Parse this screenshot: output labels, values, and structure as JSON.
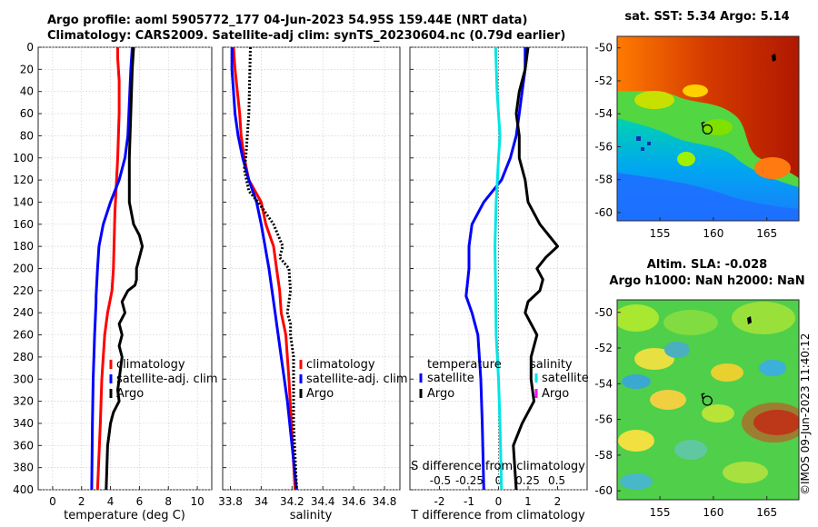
{
  "header": {
    "line1": "Argo profile: aoml 5905772_177 04-Jun-2023 54.95S 159.44E (NRT data)",
    "line2": "Climatology: CARS2009. Satellite-adj clim: synTS_20230604.nc (0.79d earlier)"
  },
  "copyright": "©IMOS 09-Jun-2023 11:40:12",
  "colors": {
    "climatology": "#ff0000",
    "satellite": "#0000ff",
    "argo": "#000000",
    "satellite_salinity": "#00e5e5",
    "argo_salinity": "#ff00ff",
    "zero_line": "#666666"
  },
  "chart_data": [
    {
      "type": "line",
      "panel": "temperature",
      "xlabel": "temperature (deg C)",
      "ylabel": "",
      "xlim": [
        -1,
        11
      ],
      "ylim": [
        400,
        0
      ],
      "x_ticks": [
        0,
        2,
        4,
        6,
        8,
        10
      ],
      "x_tick_labels": [
        "0",
        "2",
        "4",
        "6",
        "8",
        "10"
      ],
      "y_ticks": [
        0,
        20,
        40,
        60,
        80,
        100,
        120,
        140,
        160,
        180,
        200,
        220,
        240,
        260,
        280,
        300,
        320,
        340,
        360,
        380,
        400
      ],
      "y_tick_labels": [
        "0",
        "20",
        "40",
        "60",
        "80",
        "100",
        "120",
        "140",
        "160",
        "180",
        "200",
        "220",
        "240",
        "260",
        "280",
        "300",
        "320",
        "340",
        "360",
        "380",
        "400"
      ],
      "grid": true,
      "legend": [
        "climatology",
        "satellite-adj. clim",
        "Argo"
      ],
      "series": [
        {
          "name": "climatology",
          "color": "#ff0000",
          "width": 3,
          "dashed": false,
          "depth": [
            0,
            10,
            30,
            60,
            100,
            150,
            200,
            220,
            240,
            260,
            280,
            300,
            340,
            400
          ],
          "values": [
            4.5,
            4.5,
            4.6,
            4.6,
            4.5,
            4.3,
            4.2,
            4.1,
            3.8,
            3.6,
            3.5,
            3.4,
            3.3,
            3.1
          ]
        },
        {
          "name": "satellite-adj. clim",
          "color": "#0000ff",
          "width": 3,
          "dashed": false,
          "depth": [
            0,
            20,
            50,
            80,
            100,
            120,
            140,
            160,
            180,
            200,
            225,
            230,
            260,
            300,
            340,
            400
          ],
          "values": [
            5.5,
            5.4,
            5.3,
            5.2,
            5.0,
            4.6,
            4.0,
            3.5,
            3.2,
            3.1,
            3.0,
            3.0,
            2.9,
            2.8,
            2.75,
            2.7
          ]
        },
        {
          "name": "Argo",
          "color": "#000000",
          "width": 3,
          "dashed": false,
          "depth": [
            0,
            20,
            60,
            100,
            120,
            140,
            160,
            170,
            180,
            190,
            200,
            210,
            215,
            220,
            230,
            240,
            250,
            260,
            270,
            280,
            300,
            310,
            320,
            330,
            340,
            360,
            400
          ],
          "values": [
            5.6,
            5.5,
            5.4,
            5.3,
            5.3,
            5.3,
            5.6,
            6.0,
            6.2,
            6.0,
            5.8,
            5.8,
            5.7,
            5.2,
            4.8,
            5.0,
            4.6,
            4.8,
            4.6,
            4.8,
            4.6,
            4.5,
            4.6,
            4.2,
            4.0,
            3.8,
            3.7
          ]
        }
      ]
    },
    {
      "type": "line",
      "panel": "salinity",
      "xlabel": "salinity",
      "ylabel": "",
      "xlim": [
        33.75,
        34.9
      ],
      "ylim": [
        400,
        0
      ],
      "x_ticks": [
        33.8,
        34,
        34.2,
        34.4,
        34.6,
        34.8
      ],
      "x_tick_labels": [
        "33.8",
        "34",
        "34.2",
        "34.4",
        "34.6",
        "34.8"
      ],
      "grid": true,
      "legend": [
        "climatology",
        "satellite-adj. clim",
        "Argo"
      ],
      "series": [
        {
          "name": "climatology",
          "color": "#ff0000",
          "width": 3,
          "dashed": false,
          "depth": [
            0,
            20,
            60,
            80,
            100,
            120,
            140,
            160,
            180,
            200,
            220,
            240,
            260,
            300,
            400
          ],
          "values": [
            33.82,
            33.83,
            33.86,
            33.87,
            33.89,
            33.92,
            34.0,
            34.03,
            34.08,
            34.1,
            34.12,
            34.13,
            34.16,
            34.18,
            34.22
          ]
        },
        {
          "name": "satellite-adj. clim",
          "color": "#0000ff",
          "width": 3,
          "dashed": false,
          "depth": [
            0,
            20,
            40,
            60,
            80,
            100,
            120,
            140,
            160,
            200,
            240,
            280,
            320,
            360,
            400
          ],
          "values": [
            33.81,
            33.81,
            33.82,
            33.83,
            33.85,
            33.88,
            33.92,
            33.97,
            34.0,
            34.05,
            34.09,
            34.13,
            34.17,
            34.2,
            34.23
          ]
        },
        {
          "name": "Argo",
          "color": "#000000",
          "width": 3,
          "dashed": true,
          "depth": [
            0,
            60,
            80,
            100,
            110,
            130,
            140,
            160,
            180,
            190,
            200,
            220,
            240,
            250,
            260,
            280,
            300,
            340,
            400
          ],
          "values": [
            33.93,
            33.92,
            33.91,
            33.9,
            33.89,
            33.92,
            33.98,
            34.08,
            34.14,
            34.12,
            34.18,
            34.19,
            34.17,
            34.19,
            34.19,
            34.21,
            34.21,
            34.21,
            34.23
          ]
        }
      ]
    },
    {
      "type": "line",
      "panel": "difference",
      "xlabel": "T difference from climatology",
      "top_axis_label": "S difference from climatology",
      "xlim": [
        -3,
        3
      ],
      "ylim": [
        400,
        0
      ],
      "x_ticks": [
        -2,
        -1,
        0,
        1,
        2
      ],
      "x_tick_labels": [
        "-2",
        "-1",
        "0",
        "1",
        "2"
      ],
      "s_ticks": [
        -0.5,
        -0.25,
        0,
        0.25,
        0.5
      ],
      "s_tick_labels": [
        "-0.5",
        "-0.25",
        "0",
        "0.25",
        "0.5"
      ],
      "grid": true,
      "legend_groups": [
        {
          "title": "temperature",
          "items": [
            "satellite",
            "Argo"
          ]
        },
        {
          "title": "salinity",
          "items": [
            "satellite",
            "Argo"
          ]
        }
      ],
      "series": [
        {
          "name": "temperature satellite",
          "color": "#0000ff",
          "width": 3,
          "depth": [
            0,
            20,
            40,
            60,
            80,
            100,
            120,
            140,
            160,
            180,
            200,
            225,
            240,
            260,
            300,
            340,
            400
          ],
          "values": [
            0.9,
            0.9,
            0.8,
            0.7,
            0.6,
            0.4,
            0.1,
            -0.5,
            -0.9,
            -1.0,
            -1.0,
            -1.1,
            -0.9,
            -0.7,
            -0.6,
            -0.55,
            -0.5
          ]
        },
        {
          "name": "temperature Argo",
          "color": "#000000",
          "width": 3,
          "depth": [
            0,
            20,
            40,
            60,
            80,
            100,
            120,
            140,
            160,
            170,
            180,
            190,
            200,
            210,
            220,
            230,
            240,
            260,
            280,
            300,
            320,
            340,
            360,
            400
          ],
          "values": [
            1.0,
            0.9,
            0.7,
            0.6,
            0.7,
            0.7,
            0.9,
            1.0,
            1.4,
            1.7,
            2.0,
            1.6,
            1.3,
            1.5,
            1.4,
            1.0,
            0.9,
            1.3,
            1.1,
            1.1,
            1.2,
            0.8,
            0.5,
            0.6
          ]
        },
        {
          "name": "salinity satellite",
          "color": "#00e5e5",
          "width": 3,
          "depth": [
            0,
            40,
            80,
            100,
            140,
            180,
            220,
            260,
            300,
            340,
            400
          ],
          "values": [
            -0.1,
            -0.05,
            0.05,
            0.0,
            -0.08,
            -0.12,
            -0.1,
            -0.08,
            0.0,
            0.05,
            0.1
          ]
        }
      ]
    },
    {
      "type": "heatmap",
      "panel": "sst_map",
      "title": "sat. SST: 5.34 Argo: 5.14",
      "x_ticks": [
        155,
        160,
        165
      ],
      "x_tick_labels": [
        "155",
        "160",
        "165"
      ],
      "xlim": [
        151,
        168
      ],
      "y_ticks": [
        -50,
        -52,
        -54,
        -56,
        -58,
        -60
      ],
      "y_tick_labels": [
        "-50",
        "-52",
        "-54",
        "-56",
        "-58",
        "-60"
      ],
      "ylim": [
        -60.5,
        -49.3
      ],
      "marker": {
        "lon": 159.44,
        "lat": -54.95
      }
    },
    {
      "type": "heatmap",
      "panel": "sla_map",
      "title_line1": "Altim. SLA: -0.028",
      "title_line2": "Argo h1000: NaN h2000: NaN",
      "x_ticks": [
        155,
        160,
        165
      ],
      "x_tick_labels": [
        "155",
        "160",
        "165"
      ],
      "xlim": [
        151,
        168
      ],
      "y_ticks": [
        -50,
        -52,
        -54,
        -56,
        -58,
        -60
      ],
      "y_tick_labels": [
        "-50",
        "-52",
        "-54",
        "-56",
        "-58",
        "-60"
      ],
      "ylim": [
        -60.5,
        -49.3
      ],
      "marker": {
        "lon": 159.44,
        "lat": -54.95
      }
    }
  ]
}
